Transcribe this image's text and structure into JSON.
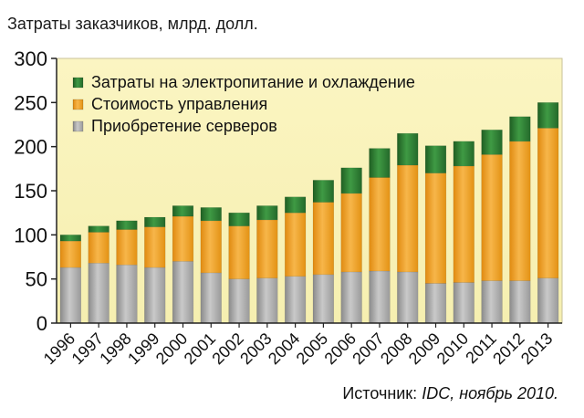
{
  "chart_data": {
    "type": "bar",
    "stacked": true,
    "ylabel": "Затраты заказчиков, млрд. долл.",
    "ylim": [
      0,
      300
    ],
    "yticks": [
      0,
      50,
      100,
      150,
      200,
      250,
      300
    ],
    "grid": false,
    "legend_position": "top-left",
    "categories": [
      "1996",
      "1997",
      "1998",
      "1999",
      "2000",
      "2001",
      "2002",
      "2003",
      "2004",
      "2005",
      "2006",
      "2007",
      "2008",
      "2009",
      "2010",
      "2011",
      "2012",
      "2013"
    ],
    "series": [
      {
        "name": "Приобретение серверов",
        "color": "#a9a9a9",
        "values": [
          63,
          68,
          66,
          63,
          70,
          57,
          50,
          51,
          53,
          55,
          58,
          59,
          58,
          45,
          46,
          48,
          48,
          51
        ]
      },
      {
        "name": "Стоимость управления",
        "color": "#f2a024",
        "values": [
          30,
          35,
          40,
          46,
          51,
          59,
          60,
          66,
          72,
          82,
          89,
          106,
          121,
          125,
          132,
          143,
          158,
          170
        ]
      },
      {
        "name": "Затраты на электропитание и охлаждение",
        "color": "#2e7d32",
        "values": [
          7,
          7,
          10,
          11,
          12,
          15,
          15,
          16,
          18,
          25,
          29,
          33,
          36,
          31,
          28,
          28,
          28,
          29
        ]
      }
    ],
    "legend_order": [
      2,
      1,
      0
    ],
    "plot_background": "#faf3b8"
  },
  "source": {
    "prefix": "Источник: ",
    "italic": "IDC, ноябрь 2010."
  }
}
